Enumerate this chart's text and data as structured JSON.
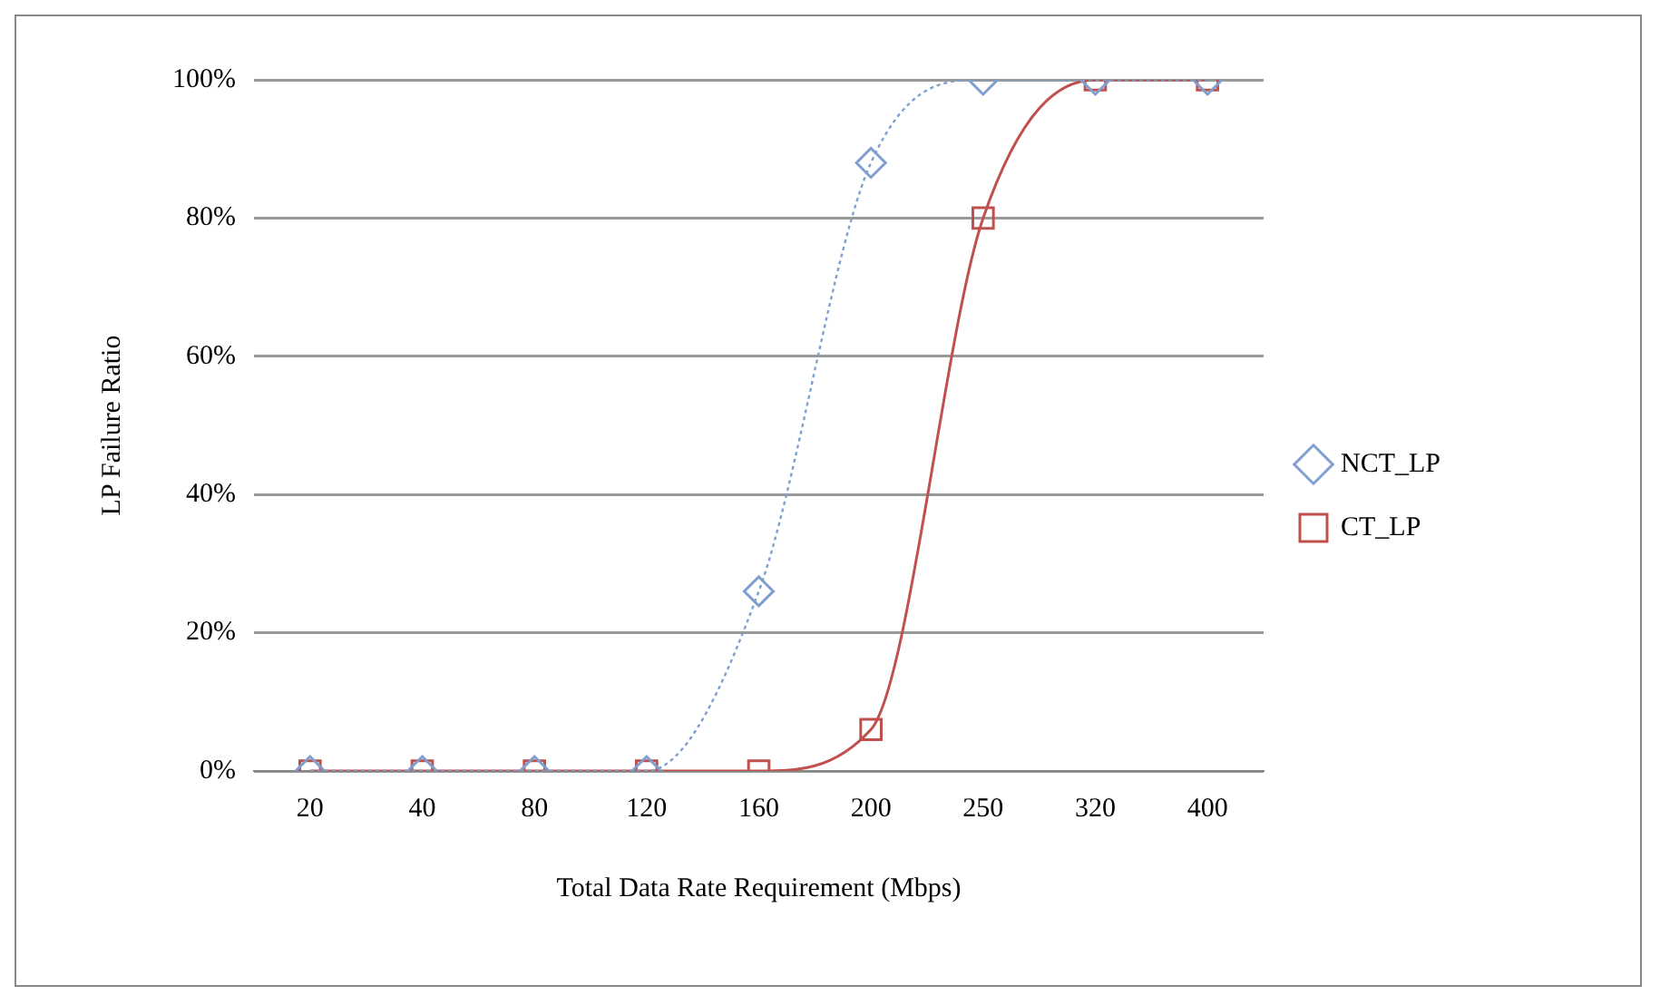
{
  "chart_data": {
    "type": "line",
    "xlabel": "Total Data Rate Requirement (Mbps)",
    "ylabel": "LP Failure Ratio",
    "categories": [
      "20",
      "40",
      "80",
      "120",
      "160",
      "200",
      "250",
      "320",
      "400"
    ],
    "series": [
      {
        "name": "NCT_LP",
        "color": "#7f9fcf",
        "values": [
          0,
          0,
          0,
          0,
          26,
          88,
          100,
          100,
          100
        ],
        "marker": "diamond",
        "line_style": "dotted"
      },
      {
        "name": "CT_LP",
        "color": "#c0504d",
        "values": [
          0,
          0,
          0,
          0,
          0,
          6,
          80,
          100,
          100
        ],
        "marker": "square",
        "line_style": "solid"
      }
    ],
    "ylim": [
      0,
      100
    ],
    "yticks": [
      {
        "value": 0,
        "label": "0%"
      },
      {
        "value": 20,
        "label": "20%"
      },
      {
        "value": 40,
        "label": "40%"
      },
      {
        "value": 60,
        "label": "60%"
      },
      {
        "value": 80,
        "label": "80%"
      },
      {
        "value": 100,
        "label": "100%"
      }
    ],
    "grid": "y",
    "legend": "right"
  }
}
